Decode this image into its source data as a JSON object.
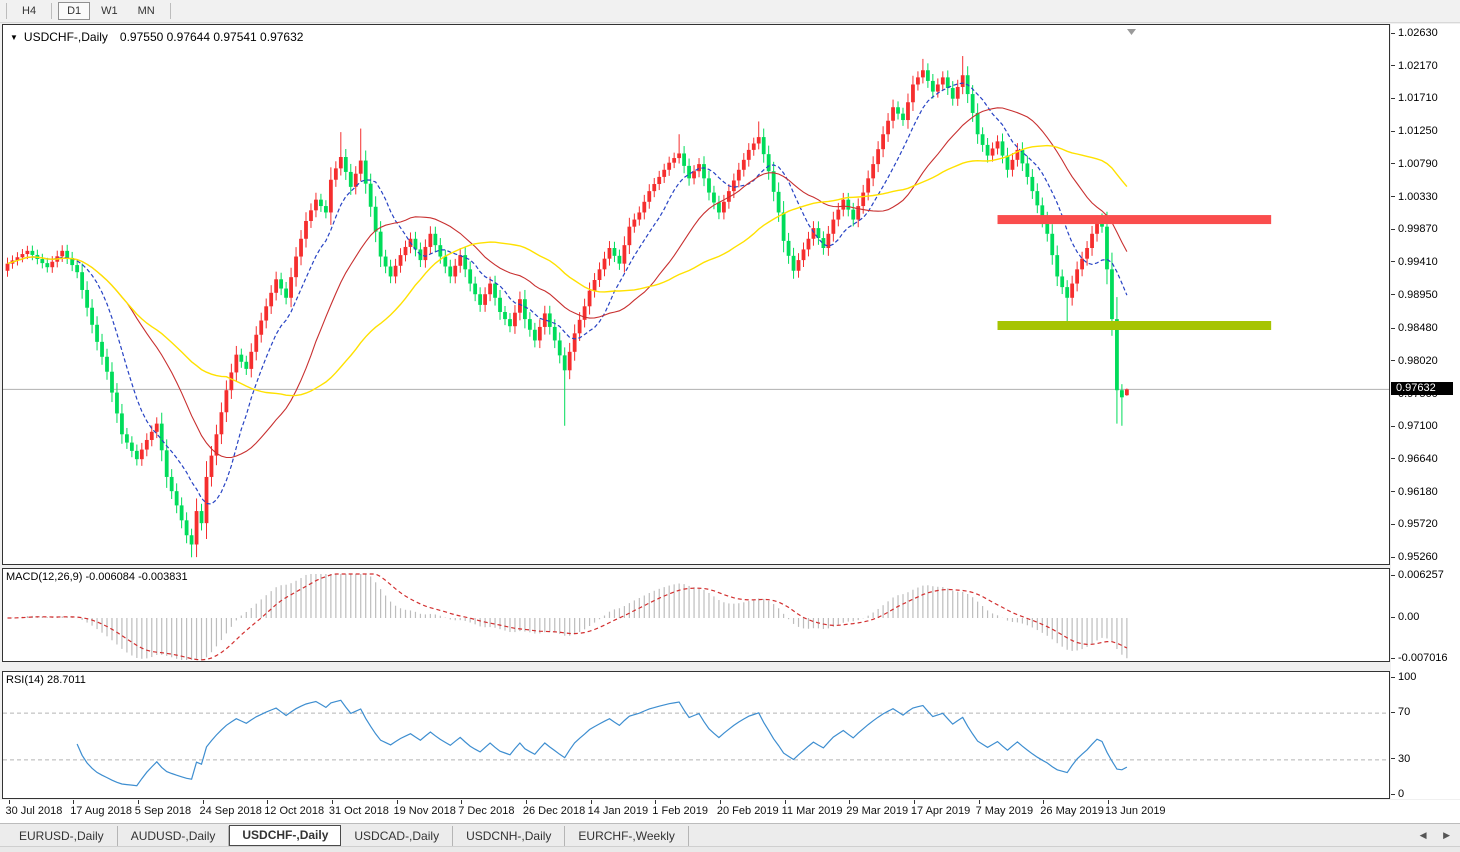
{
  "toolbar": {
    "timeframes": [
      {
        "label": "H4",
        "active": false
      },
      {
        "label": "D1",
        "active": true
      },
      {
        "label": "W1",
        "active": false
      },
      {
        "label": "MN",
        "active": false
      }
    ]
  },
  "chart": {
    "menu_arrow": "▼",
    "symbol_label": "USDCHF-,Daily",
    "ohlc_text": "0.97550 0.97644 0.97541 0.97632"
  },
  "price_axis": {
    "labels": [
      "1.02630",
      "1.02170",
      "1.01710",
      "1.01250",
      "1.00790",
      "1.00330",
      "0.99870",
      "0.99410",
      "0.98950",
      "0.98480",
      "0.98020",
      "0.97560",
      "0.97100",
      "0.96640",
      "0.96180",
      "0.95720",
      "0.95260"
    ],
    "current_label": "0.97632"
  },
  "macd_panel": {
    "label": "MACD(12,26,9) -0.006084 -0.003831",
    "axis_labels": [
      "0.006257",
      "0.00",
      "-0.007016"
    ],
    "main_value": -0.006084,
    "signal_value": -0.003831
  },
  "rsi_panel": {
    "label": "RSI(14) 28.7011",
    "axis_labels": [
      "100",
      "70",
      "30",
      "0"
    ],
    "value": 28.7011
  },
  "date_axis": {
    "labels": [
      "30 Jul 2018",
      "17 Aug 2018",
      "5 Sep 2018",
      "24 Sep 2018",
      "12 Oct 2018",
      "31 Oct 2018",
      "19 Nov 2018",
      "7 Dec 2018",
      "26 Dec 2018",
      "14 Jan 2019",
      "1 Feb 2019",
      "20 Feb 2019",
      "11 Mar 2019",
      "29 Mar 2019",
      "17 Apr 2019",
      "7 May 2019",
      "26 May 2019",
      "13 Jun 2019"
    ],
    "tick_indices": [
      0,
      13,
      26,
      39,
      52,
      65,
      78,
      91,
      104,
      117,
      130,
      143,
      156,
      169,
      182,
      195,
      208,
      221
    ]
  },
  "tabs": {
    "items": [
      {
        "label": "EURUSD-,Daily",
        "active": false
      },
      {
        "label": "AUDUSD-,Daily",
        "active": false
      },
      {
        "label": "USDCHF-,Daily",
        "active": true
      },
      {
        "label": "USDCAD-,Daily",
        "active": false
      },
      {
        "label": "USDCNH-,Daily",
        "active": false
      },
      {
        "label": "EURCHF-,Weekly",
        "active": false
      }
    ],
    "scroll_left": "◀",
    "scroll_right": "▶"
  },
  "colors": {
    "bull_candle": "#f52e2e",
    "bear_candle": "#00dc5a",
    "current_price_line": "#b0b0b0",
    "badge_bg": "#000000",
    "badge_text": "#ffffff",
    "pane_border": "#333333"
  },
  "chart_data": {
    "type": "candlestick",
    "symbol": "USDCHF",
    "timeframe": "Daily",
    "title": "USDCHF-,Daily",
    "ylim": [
      0.9526,
      1.0263
    ],
    "bars_total": 226,
    "first_open": 0.993,
    "bar_spacing_px": 4.975,
    "x_tick_labels": [
      "30 Jul 2018",
      "17 Aug 2018",
      "5 Sep 2018",
      "24 Sep 2018",
      "12 Oct 2018",
      "31 Oct 2018",
      "19 Nov 2018",
      "7 Dec 2018",
      "26 Dec 2018",
      "14 Jan 2019",
      "1 Feb 2019",
      "20 Feb 2019",
      "11 Mar 2019",
      "29 Mar 2019",
      "17 Apr 2019",
      "7 May 2019",
      "26 May 2019",
      "13 Jun 2019"
    ],
    "x_tick_bar_indices": [
      0,
      13,
      26,
      39,
      52,
      65,
      78,
      91,
      104,
      117,
      130,
      143,
      156,
      169,
      182,
      195,
      208,
      221
    ],
    "close_anchors": [
      [
        0,
        0.994
      ],
      [
        4,
        0.9958
      ],
      [
        8,
        0.9935
      ],
      [
        11,
        0.9958
      ],
      [
        14,
        0.9928
      ],
      [
        16,
        0.9878
      ],
      [
        18,
        0.983
      ],
      [
        20,
        0.9788
      ],
      [
        23,
        0.97
      ],
      [
        26,
        0.9665
      ],
      [
        28,
        0.9692
      ],
      [
        30,
        0.9715
      ],
      [
        32,
        0.964
      ],
      [
        34,
        0.96
      ],
      [
        36,
        0.9558
      ],
      [
        37,
        0.9545
      ],
      [
        38,
        0.9592
      ],
      [
        39,
        0.9575
      ],
      [
        40,
        0.964
      ],
      [
        42,
        0.97
      ],
      [
        44,
        0.9762
      ],
      [
        46,
        0.9812
      ],
      [
        48,
        0.9792
      ],
      [
        50,
        0.984
      ],
      [
        52,
        0.988
      ],
      [
        54,
        0.9918
      ],
      [
        56,
        0.9892
      ],
      [
        58,
        0.995
      ],
      [
        60,
        1.0
      ],
      [
        62,
        1.003
      ],
      [
        64,
        1.0012
      ],
      [
        65,
        1.0058
      ],
      [
        67,
        1.009
      ],
      [
        69,
        1.0048
      ],
      [
        71,
        1.0085
      ],
      [
        73,
        1.002
      ],
      [
        75,
        0.995
      ],
      [
        77,
        0.9922
      ],
      [
        79,
        0.9952
      ],
      [
        81,
        0.9975
      ],
      [
        83,
        0.9945
      ],
      [
        85,
        0.9982
      ],
      [
        87,
        0.995
      ],
      [
        89,
        0.9922
      ],
      [
        91,
        0.9952
      ],
      [
        93,
        0.9912
      ],
      [
        95,
        0.9882
      ],
      [
        97,
        0.9912
      ],
      [
        99,
        0.9872
      ],
      [
        101,
        0.9852
      ],
      [
        103,
        0.989
      ],
      [
        104,
        0.9862
      ],
      [
        106,
        0.9832
      ],
      [
        108,
        0.987
      ],
      [
        110,
        0.9832
      ],
      [
        112,
        0.979
      ],
      [
        114,
        0.9842
      ],
      [
        116,
        0.988
      ],
      [
        117,
        0.9902
      ],
      [
        119,
        0.9932
      ],
      [
        121,
        0.9962
      ],
      [
        123,
        0.994
      ],
      [
        125,
        0.9992
      ],
      [
        127,
        1.0012
      ],
      [
        129,
        1.0042
      ],
      [
        131,
        1.0062
      ],
      [
        133,
        1.0082
      ],
      [
        135,
        1.0095
      ],
      [
        137,
        1.006
      ],
      [
        139,
        1.008
      ],
      [
        141,
        1.004
      ],
      [
        143,
        1.0012
      ],
      [
        145,
        1.0042
      ],
      [
        147,
        1.0072
      ],
      [
        149,
        1.01
      ],
      [
        151,
        1.0118
      ],
      [
        153,
        1.007
      ],
      [
        155,
        1.0012
      ],
      [
        156,
        0.9972
      ],
      [
        158,
        0.993
      ],
      [
        160,
        0.996
      ],
      [
        162,
        0.999
      ],
      [
        164,
        0.9962
      ],
      [
        166,
        1.0002
      ],
      [
        168,
        1.003
      ],
      [
        170,
        1.0002
      ],
      [
        172,
        1.004
      ],
      [
        174,
        1.008
      ],
      [
        176,
        1.0122
      ],
      [
        178,
        1.016
      ],
      [
        180,
        1.0142
      ],
      [
        182,
        1.0192
      ],
      [
        184,
        1.0212
      ],
      [
        186,
        1.0182
      ],
      [
        188,
        1.0202
      ],
      [
        190,
        1.0172
      ],
      [
        192,
        1.0205
      ],
      [
        194,
        1.0152
      ],
      [
        195,
        1.0122
      ],
      [
        197,
        1.0092
      ],
      [
        199,
        1.0112
      ],
      [
        201,
        1.0072
      ],
      [
        203,
        1.01
      ],
      [
        205,
        1.0062
      ],
      [
        207,
        1.0022
      ],
      [
        209,
        0.9982
      ],
      [
        211,
        0.9922
      ],
      [
        213,
        0.9892
      ],
      [
        215,
        0.9932
      ],
      [
        217,
        0.9962
      ],
      [
        219,
        1.0002
      ],
      [
        220,
        0.9992
      ],
      [
        221,
        0.9932
      ],
      [
        222,
        0.9862
      ],
      [
        223,
        0.9762
      ],
      [
        224,
        0.9752
      ],
      [
        225,
        0.97632
      ]
    ],
    "high_overrides": {
      "67": 1.0125,
      "71": 1.013,
      "135": 1.0122,
      "151": 1.014,
      "184": 1.0228,
      "192": 1.0232,
      "219": 1.0008
    },
    "low_overrides": {
      "37": 0.9527,
      "112": 0.9712,
      "213": 0.9855,
      "223": 0.9715,
      "224": 0.9712
    },
    "last_bar": {
      "open": 0.9755,
      "high": 0.97644,
      "low": 0.97541,
      "close": 0.97632
    },
    "current_price": 0.97632,
    "moving_averages": [
      {
        "period": 10,
        "color": "#2743c4",
        "dash": "4 2.5",
        "width": 1.2
      },
      {
        "period": 25,
        "color": "#c83030",
        "dash": "",
        "width": 1.1
      },
      {
        "period": 45,
        "color": "#ffe100",
        "dash": "",
        "width": 1.4
      }
    ],
    "levels": [
      {
        "name": "resistance",
        "value": 1.0002,
        "color": "#fa4d4d",
        "thickness": 9,
        "from_bar": 199,
        "to_bar": 254
      },
      {
        "name": "support",
        "value": 0.9853,
        "color": "#a6c402",
        "thickness": 9,
        "from_bar": 199,
        "to_bar": 254
      }
    ],
    "macd": {
      "fast": 12,
      "slow": 26,
      "signal": 9,
      "hist_color": "#bdbdbd",
      "signal_color": "#d22f2f",
      "yrange": [
        -0.007016,
        0.006257
      ]
    },
    "rsi": {
      "period": 14,
      "color": "#3e8ed0",
      "levels": [
        30,
        70
      ],
      "yrange": [
        0,
        100
      ]
    }
  }
}
